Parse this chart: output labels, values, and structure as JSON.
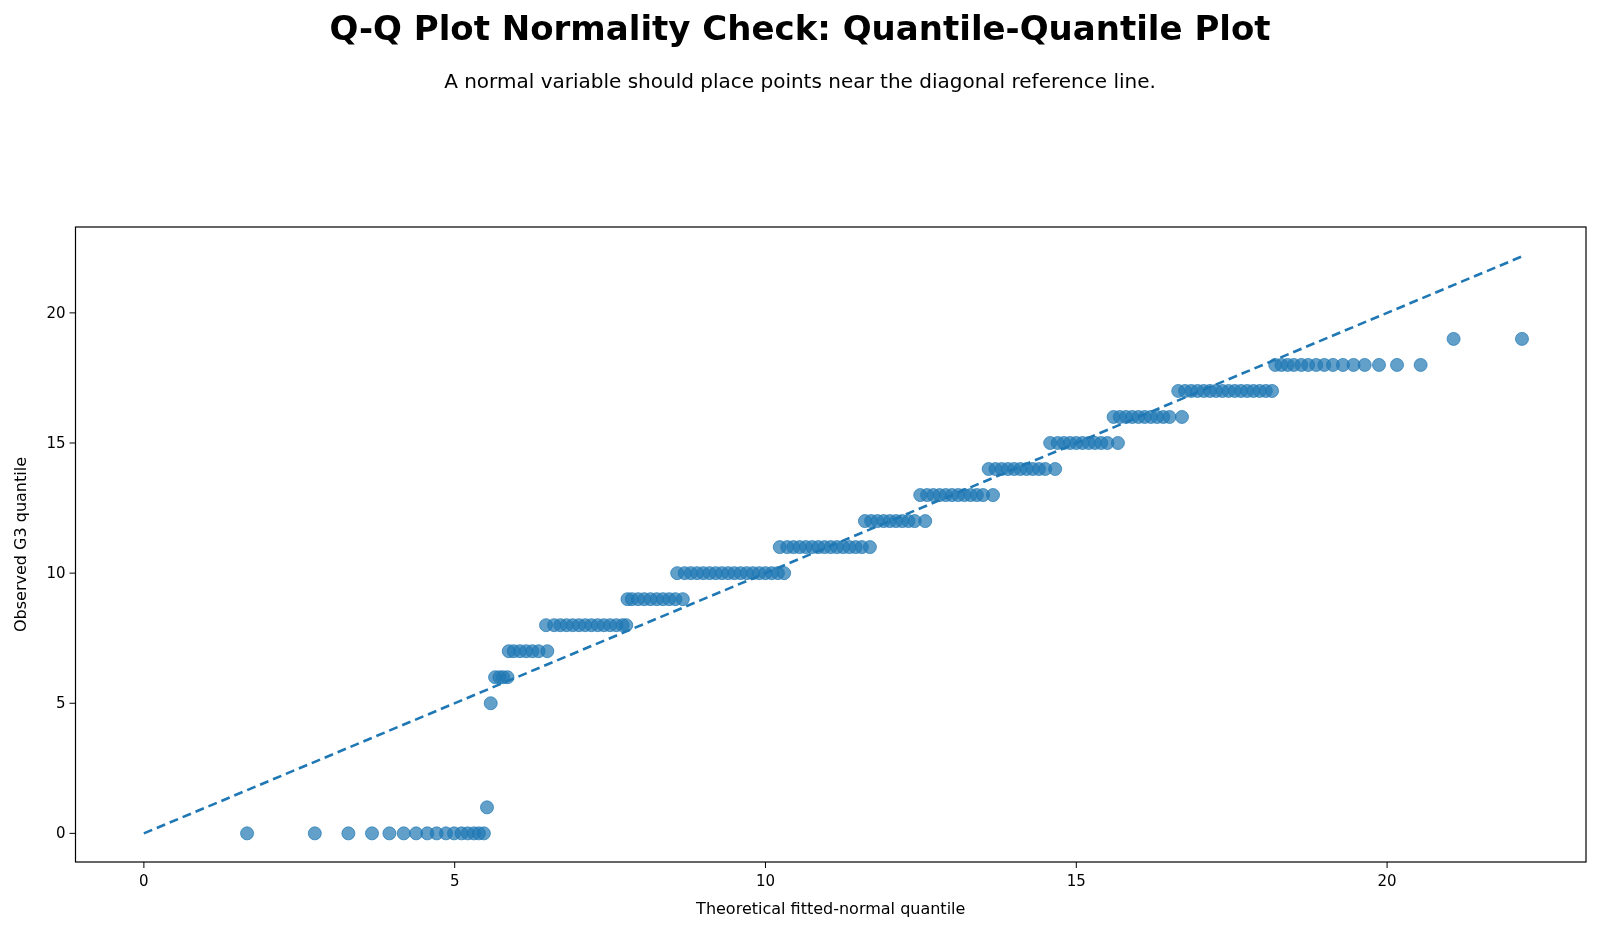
{
  "chart_data": {
    "type": "scatter",
    "title": "Q-Q Plot Normality Check: Quantile-Quantile Plot",
    "subtitle": "A normal variable should place points near the diagonal reference line.",
    "xlabel": "Theoretical fitted-normal quantile",
    "ylabel": "Observed G3 quantile",
    "xlim": [
      -1.1,
      23.2
    ],
    "ylim": [
      -1.1,
      23.3
    ],
    "xticks": [
      0,
      5,
      10,
      15,
      20
    ],
    "yticks": [
      0,
      5,
      10,
      15,
      20
    ],
    "grid": false,
    "series": [
      {
        "color": "#1f77b4",
        "marker": "circle",
        "x": [
          1.66,
          2.75,
          3.29,
          3.67,
          3.95,
          4.18,
          4.38,
          4.56,
          4.71,
          4.86,
          4.99,
          5.11,
          5.21,
          5.31,
          5.39,
          5.47,
          5.52,
          5.58,
          5.65,
          5.72,
          5.78,
          5.85,
          5.87,
          5.95,
          6.05,
          6.15,
          6.25,
          6.35,
          6.49,
          6.47,
          6.6,
          6.7,
          6.8,
          6.9,
          7.0,
          7.1,
          7.2,
          7.3,
          7.4,
          7.5,
          7.6,
          7.7,
          7.76,
          7.78,
          7.85,
          7.95,
          8.05,
          8.15,
          8.25,
          8.35,
          8.45,
          8.55,
          8.67,
          8.58,
          8.7,
          8.8,
          8.9,
          9.0,
          9.1,
          9.2,
          9.3,
          9.4,
          9.5,
          9.6,
          9.7,
          9.8,
          9.9,
          10.0,
          10.1,
          10.2,
          10.3,
          10.23,
          10.35,
          10.45,
          10.55,
          10.65,
          10.75,
          10.85,
          10.95,
          11.05,
          11.15,
          11.25,
          11.35,
          11.45,
          11.55,
          11.68,
          11.6,
          11.7,
          11.8,
          11.9,
          12.0,
          12.1,
          12.2,
          12.3,
          12.4,
          12.57,
          12.49,
          12.6,
          12.7,
          12.8,
          12.9,
          13.0,
          13.1,
          13.2,
          13.3,
          13.4,
          13.5,
          13.66,
          13.59,
          13.7,
          13.8,
          13.9,
          14.0,
          14.1,
          14.2,
          14.3,
          14.4,
          14.5,
          14.66,
          14.58,
          14.7,
          14.8,
          14.9,
          15.0,
          15.1,
          15.2,
          15.3,
          15.4,
          15.5,
          15.67,
          15.6,
          15.7,
          15.8,
          15.9,
          16.0,
          16.1,
          16.2,
          16.3,
          16.4,
          16.5,
          16.7,
          16.64,
          16.75,
          16.85,
          16.95,
          17.05,
          17.15,
          17.25,
          17.35,
          17.45,
          17.55,
          17.65,
          17.75,
          17.85,
          17.95,
          18.05,
          18.15,
          18.2,
          18.3,
          18.4,
          18.5,
          18.62,
          18.73,
          18.86,
          18.99,
          19.13,
          19.29,
          19.46,
          19.64,
          19.87,
          20.16,
          20.54,
          21.07,
          22.17
        ],
        "values": [
          0,
          0,
          0,
          0,
          0,
          0,
          0,
          0,
          0,
          0,
          0,
          0,
          0,
          0,
          0,
          0,
          1,
          5,
          6,
          6,
          6,
          6,
          7,
          7,
          7,
          7,
          7,
          7,
          7,
          8,
          8,
          8,
          8,
          8,
          8,
          8,
          8,
          8,
          8,
          8,
          8,
          8,
          8,
          9,
          9,
          9,
          9,
          9,
          9,
          9,
          9,
          9,
          9,
          10,
          10,
          10,
          10,
          10,
          10,
          10,
          10,
          10,
          10,
          10,
          10,
          10,
          10,
          10,
          10,
          10,
          10,
          11,
          11,
          11,
          11,
          11,
          11,
          11,
          11,
          11,
          11,
          11,
          11,
          11,
          11,
          11,
          12,
          12,
          12,
          12,
          12,
          12,
          12,
          12,
          12,
          12,
          13,
          13,
          13,
          13,
          13,
          13,
          13,
          13,
          13,
          13,
          13,
          13,
          14,
          14,
          14,
          14,
          14,
          14,
          14,
          14,
          14,
          14,
          14,
          15,
          15,
          15,
          15,
          15,
          15,
          15,
          15,
          15,
          15,
          15,
          16,
          16,
          16,
          16,
          16,
          16,
          16,
          16,
          16,
          16,
          16,
          17,
          17,
          17,
          17,
          17,
          17,
          17,
          17,
          17,
          17,
          17,
          17,
          17,
          17,
          17,
          17,
          18,
          18,
          18,
          18,
          18,
          18,
          18,
          18,
          18,
          18,
          18,
          18,
          18,
          18,
          18,
          19,
          19
        ]
      },
      {
        "type": "line",
        "color": "#1f77b4",
        "line_style": "dashed",
        "marker": "none",
        "x": [
          0,
          22.17
        ],
        "values": [
          0,
          22.17
        ]
      }
    ]
  }
}
